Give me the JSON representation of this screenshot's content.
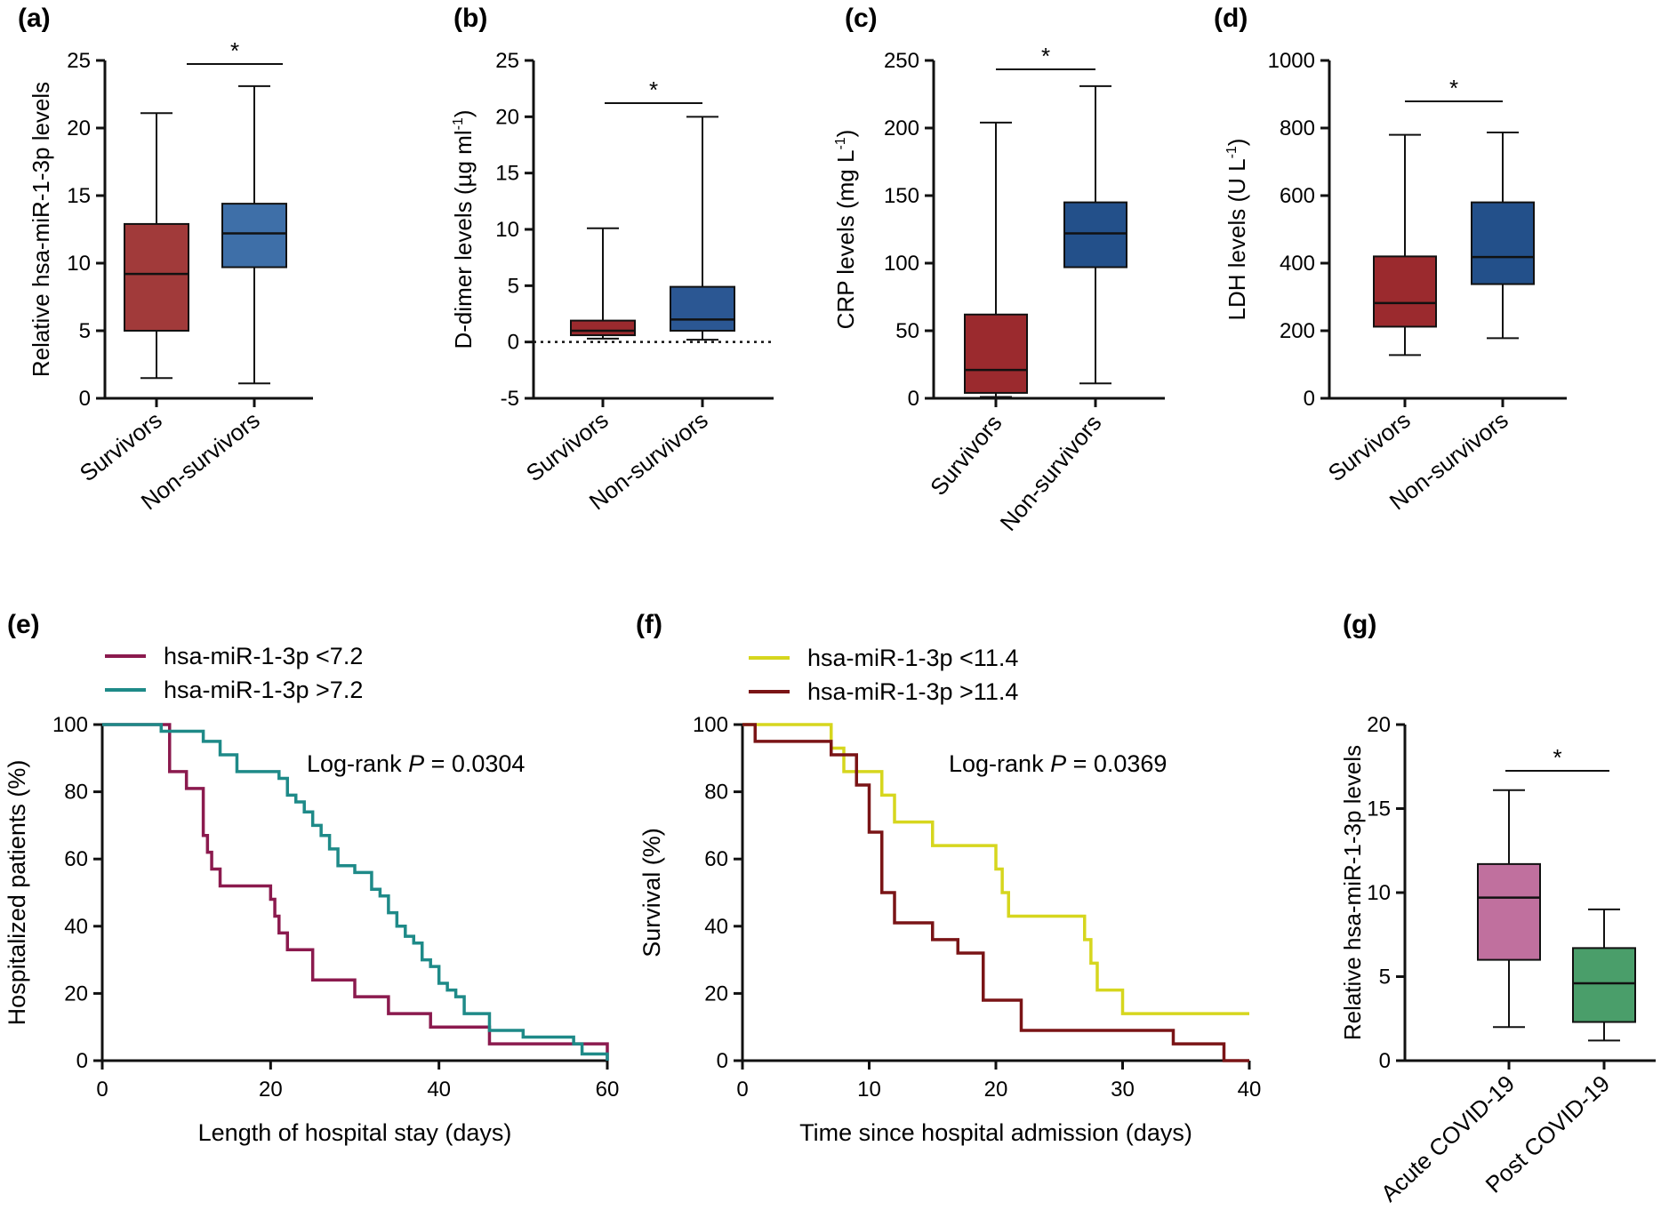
{
  "chart_data": [
    {
      "panel": "(a)",
      "type": "boxplot",
      "ylabel": "Relative hsa-miR-1-3p levels",
      "ylim": [
        0,
        25
      ],
      "yticks": [
        0,
        5,
        10,
        15,
        20,
        25
      ],
      "categories": [
        "Survivors",
        "Non-survivors"
      ],
      "boxes": [
        {
          "name": "Survivors",
          "min": 1.5,
          "q1": 5.0,
          "median": 9.2,
          "q3": 12.9,
          "max": 21.1,
          "color": "#a13a3a"
        },
        {
          "name": "Non-survivors",
          "min": 1.1,
          "q1": 9.7,
          "median": 12.2,
          "q3": 14.4,
          "max": 23.1,
          "color": "#3e6fa8"
        }
      ],
      "significance": "*"
    },
    {
      "panel": "(b)",
      "type": "boxplot",
      "ylabel": "D-dimer levels (µg ml⁻¹)",
      "ylim": [
        -5,
        25
      ],
      "yticks": [
        -5,
        0,
        5,
        10,
        15,
        20,
        25
      ],
      "reference_line": 0,
      "categories": [
        "Survivors",
        "Non-survivors"
      ],
      "boxes": [
        {
          "name": "Survivors",
          "min": 0.3,
          "q1": 0.6,
          "median": 1.0,
          "q3": 1.9,
          "max": 10.1,
          "color": "#9b2a2e"
        },
        {
          "name": "Non-survivors",
          "min": 0.2,
          "q1": 1.0,
          "median": 2.0,
          "q3": 4.9,
          "max": 20.0,
          "color": "#2b5793"
        }
      ],
      "significance": "*"
    },
    {
      "panel": "(c)",
      "type": "boxplot",
      "ylabel": "CRP levels (mg L⁻¹)",
      "ylim": [
        0,
        250
      ],
      "yticks": [
        0,
        50,
        100,
        150,
        200,
        250
      ],
      "categories": [
        "Survivors",
        "Non-survivors"
      ],
      "boxes": [
        {
          "name": "Survivors",
          "min": 1,
          "q1": 4,
          "median": 21,
          "q3": 62,
          "max": 204,
          "color": "#9b2a2e"
        },
        {
          "name": "Non-survivors",
          "min": 11,
          "q1": 97,
          "median": 122,
          "q3": 145,
          "max": 231,
          "color": "#23508a"
        }
      ],
      "significance": "*"
    },
    {
      "panel": "(d)",
      "type": "boxplot",
      "ylabel": "LDH levels (U L⁻¹)",
      "ylim": [
        0,
        1000
      ],
      "yticks": [
        0,
        200,
        400,
        600,
        800,
        1000
      ],
      "categories": [
        "Survivors",
        "Non-survivors"
      ],
      "boxes": [
        {
          "name": "Survivors",
          "min": 128,
          "q1": 212,
          "median": 282,
          "q3": 420,
          "max": 780,
          "color": "#9b2a2e"
        },
        {
          "name": "Non-survivors",
          "min": 178,
          "q1": 338,
          "median": 418,
          "q3": 580,
          "max": 787,
          "color": "#23508a"
        }
      ],
      "significance": "*"
    },
    {
      "panel": "(e)",
      "type": "line",
      "xlabel": "Length of hospital stay (days)",
      "ylabel": "Hospitalized patients (%)",
      "xlim": [
        0,
        60
      ],
      "xticks": [
        0,
        20,
        40,
        60
      ],
      "ylim": [
        0,
        100
      ],
      "yticks": [
        0,
        20,
        40,
        60,
        80,
        100
      ],
      "annotation": {
        "label": "Log-rank",
        "p_label": "P",
        "p_value": "= 0.0304"
      },
      "series": [
        {
          "name": "hsa-miR-1-3p <7.2",
          "color": "#8b1a4e",
          "x": [
            0,
            8,
            10,
            12,
            12.5,
            13,
            14,
            15,
            20,
            20.5,
            21,
            22,
            25,
            30,
            34,
            39,
            46,
            60
          ],
          "y": [
            100,
            86,
            81,
            67,
            62,
            57,
            52,
            52,
            48,
            43,
            38,
            33,
            24,
            19,
            14,
            10,
            5,
            0
          ]
        },
        {
          "name": "hsa-miR-1-3p >7.2",
          "color": "#1e8a88",
          "x": [
            0,
            7,
            12,
            14,
            16,
            21,
            22,
            23,
            24,
            25,
            26,
            27,
            28,
            30,
            32,
            33,
            34,
            35,
            36,
            37,
            38,
            39,
            40,
            41,
            42,
            43,
            46,
            50,
            56,
            57,
            60
          ],
          "y": [
            100,
            98,
            95,
            91,
            86,
            84,
            79,
            77,
            74,
            70,
            67,
            63,
            58,
            56,
            51,
            49,
            44,
            40,
            37,
            35,
            30,
            28,
            23,
            21,
            19,
            14,
            9,
            7,
            5,
            2,
            0
          ]
        }
      ]
    },
    {
      "panel": "(f)",
      "type": "line",
      "xlabel": "Time since hospital admission (days)",
      "ylabel": "Survival (%)",
      "xlim": [
        0,
        40
      ],
      "xticks": [
        0,
        10,
        20,
        30,
        40
      ],
      "ylim": [
        0,
        100
      ],
      "yticks": [
        0,
        20,
        40,
        60,
        80,
        100
      ],
      "annotation": {
        "label": "Log-rank",
        "p_label": "P",
        "p_value": "= 0.0369"
      },
      "series": [
        {
          "name": "hsa-miR-1-3p <11.4",
          "color": "#d6d61e",
          "x": [
            0,
            7,
            8,
            11,
            12,
            15,
            20,
            20.5,
            21,
            27,
            27.5,
            28,
            30,
            40
          ],
          "y": [
            100,
            93,
            86,
            79,
            71,
            64,
            57,
            50,
            43,
            36,
            29,
            21,
            14,
            14
          ]
        },
        {
          "name": "hsa-miR-1-3p >11.4",
          "color": "#7a1416",
          "x": [
            0,
            1,
            7,
            9,
            10,
            11,
            12,
            15,
            17,
            19,
            22,
            34,
            38,
            40
          ],
          "y": [
            100,
            95,
            91,
            82,
            68,
            50,
            41,
            36,
            32,
            18,
            9,
            5,
            0,
            0
          ]
        }
      ]
    },
    {
      "panel": "(g)",
      "type": "boxplot",
      "ylabel": "Relative hsa-miR-1-3p levels",
      "ylim": [
        0,
        20
      ],
      "yticks": [
        0,
        5,
        10,
        15,
        20
      ],
      "categories": [
        "Acute COVID-19",
        "Post COVID-19"
      ],
      "boxes": [
        {
          "name": "Acute COVID-19",
          "min": 2.0,
          "q1": 6.0,
          "median": 9.7,
          "q3": 11.7,
          "max": 16.1,
          "color": "#c0709e"
        },
        {
          "name": "Post COVID-19",
          "min": 1.2,
          "q1": 2.3,
          "median": 4.6,
          "q3": 6.7,
          "max": 9.0,
          "color": "#4a9e6a"
        }
      ],
      "significance": "*"
    }
  ]
}
